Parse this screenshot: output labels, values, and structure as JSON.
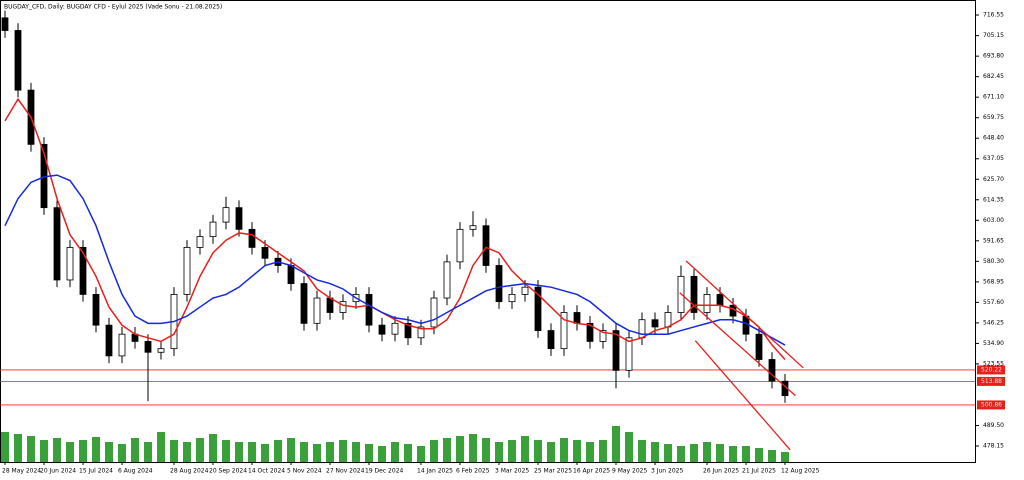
{
  "chart_data": {
    "type": "candlestick",
    "title": "BUGDAY_CFD, Daily: BUGDAY CFD - Eylul 2025 (Vade Sonu - 21.08.2025)",
    "categories": [
      "28 May 2024",
      null,
      null,
      "20 Jun 2024",
      null,
      null,
      "15 Jul 2024",
      null,
      null,
      "6 Aug 2024",
      null,
      null,
      null,
      "28 Aug 2024",
      null,
      null,
      "20 Sep 2024",
      null,
      null,
      "14 Oct 2024",
      null,
      null,
      "5 Nov 2024",
      null,
      null,
      "27 Nov 2024",
      null,
      null,
      "19 Dec 2024",
      null,
      null,
      null,
      "14 Jan 2025",
      null,
      null,
      "6 Feb 2025",
      null,
      null,
      "3 Mar 2025",
      null,
      null,
      "25 Mar 2025",
      null,
      null,
      "16 Apr 2025",
      null,
      null,
      "9 May 2025",
      null,
      null,
      "3 Jun 2025",
      null,
      null,
      null,
      "26 Jun 2025",
      null,
      null,
      "21 Jul 2025",
      null,
      null,
      "12 Aug 2025"
    ],
    "open": [
      715,
      708,
      675,
      645,
      610,
      570,
      588,
      562,
      545,
      528,
      540,
      536,
      530,
      532,
      562,
      588,
      594,
      602,
      610,
      598,
      588,
      582,
      578,
      568,
      546,
      560,
      552,
      558,
      562,
      545,
      540,
      546,
      538,
      544,
      560,
      580,
      598,
      600,
      578,
      558,
      562,
      566,
      542,
      532,
      552,
      546,
      536,
      542,
      520,
      538,
      548,
      544,
      552,
      572,
      552,
      562,
      556,
      550,
      540,
      526,
      514
    ],
    "high": [
      719,
      712,
      679,
      649,
      614,
      592,
      592,
      566,
      549,
      544,
      544,
      540,
      536,
      566,
      592,
      598,
      606,
      616,
      614,
      602,
      592,
      586,
      582,
      572,
      564,
      564,
      562,
      566,
      566,
      549,
      550,
      550,
      548,
      564,
      584,
      602,
      608,
      604,
      582,
      566,
      570,
      570,
      546,
      556,
      556,
      550,
      546,
      546,
      542,
      552,
      552,
      556,
      578,
      576,
      566,
      566,
      560,
      554,
      544,
      530,
      518
    ],
    "low": [
      704,
      671,
      641,
      606,
      566,
      566,
      558,
      541,
      524,
      524,
      532,
      503,
      526,
      528,
      558,
      584,
      590,
      598,
      594,
      584,
      578,
      574,
      564,
      542,
      542,
      548,
      548,
      554,
      541,
      536,
      536,
      534,
      534,
      540,
      556,
      576,
      594,
      574,
      554,
      554,
      558,
      538,
      528,
      528,
      542,
      532,
      532,
      510,
      516,
      534,
      540,
      540,
      548,
      548,
      548,
      552,
      546,
      536,
      522,
      510,
      502
    ],
    "close": [
      708,
      675,
      645,
      610,
      570,
      588,
      562,
      545,
      528,
      540,
      536,
      530,
      532,
      562,
      588,
      594,
      602,
      610,
      598,
      588,
      582,
      578,
      568,
      546,
      560,
      552,
      558,
      562,
      545,
      540,
      546,
      538,
      544,
      560,
      580,
      598,
      600,
      578,
      558,
      562,
      566,
      542,
      532,
      552,
      546,
      536,
      542,
      520,
      538,
      548,
      544,
      552,
      572,
      552,
      562,
      556,
      550,
      540,
      526,
      514,
      506
    ],
    "series": [
      {
        "color": "#e8201c",
        "values": [
          658,
          670,
          660,
          640,
          615,
          595,
          585,
          572,
          555,
          545,
          540,
          538,
          536,
          540,
          555,
          572,
          585,
          592,
          596,
          595,
          590,
          585,
          580,
          575,
          565,
          560,
          556,
          555,
          556,
          552,
          548,
          545,
          543,
          543,
          548,
          560,
          578,
          588,
          585,
          575,
          568,
          562,
          555,
          548,
          546,
          545,
          541,
          540,
          536,
          538,
          542,
          544,
          548,
          556,
          556,
          556,
          554,
          550,
          544,
          534,
          526
        ]
      },
      {
        "color": "#1428e0",
        "values": [
          600,
          615,
          624,
          627,
          628,
          625,
          615,
          600,
          580,
          562,
          550,
          546,
          546,
          547,
          550,
          555,
          560,
          562,
          566,
          572,
          578,
          580,
          578,
          574,
          570,
          568,
          565,
          560,
          556,
          552,
          549,
          548,
          546,
          548,
          552,
          556,
          560,
          564,
          566,
          567,
          568,
          567,
          566,
          564,
          562,
          558,
          552,
          546,
          542,
          540,
          540,
          540,
          542,
          544,
          546,
          548,
          548,
          546,
          542,
          538,
          534
        ]
      }
    ],
    "volume": [
      30,
      28,
      26,
      22,
      24,
      20,
      22,
      25,
      20,
      18,
      24,
      20,
      30,
      22,
      20,
      24,
      28,
      22,
      20,
      20,
      18,
      22,
      24,
      20,
      18,
      20,
      22,
      20,
      18,
      16,
      20,
      18,
      16,
      22,
      24,
      26,
      28,
      24,
      20,
      22,
      26,
      22,
      20,
      24,
      22,
      20,
      22,
      36,
      30,
      22,
      20,
      18,
      16,
      18,
      20,
      18,
      16,
      16,
      14,
      12,
      10
    ],
    "volume_color": "#3aa03a",
    "levels": [
      520.22,
      513.88,
      500.86
    ],
    "level_color": "#e8201c",
    "trendlines": [
      {
        "x": [
          52.4,
          61.4
        ],
        "y": [
          580.5,
          521.4
        ]
      },
      {
        "x": [
          51.9,
          60.8
        ],
        "y": [
          562.9,
          506
        ]
      },
      {
        "x": [
          53.1,
          60.4
        ],
        "y": [
          536.4,
          476
        ]
      }
    ],
    "ylim": [
      469.3,
      723.2
    ],
    "yticks": [
      716.55,
      705.15,
      {
        "value": 693.8,
        "label": "693.80"
      },
      682.45,
      {
        "value": 671.1,
        "label": "671.10"
      },
      659.75,
      {
        "value": 648.4,
        "label": "648.40"
      },
      637.05,
      {
        "value": 625.7,
        "label": "625.70"
      },
      614.35,
      {
        "value": 603,
        "label": "603.00"
      },
      591.65,
      {
        "value": 580.3,
        "label": "580.30"
      },
      568.95,
      {
        "value": 557.6,
        "label": "557.60"
      },
      546.25,
      {
        "value": 534.9,
        "label": "534.90"
      },
      523.55,
      {
        "value": 489.5,
        "label": "489.50"
      },
      478.15
    ]
  }
}
